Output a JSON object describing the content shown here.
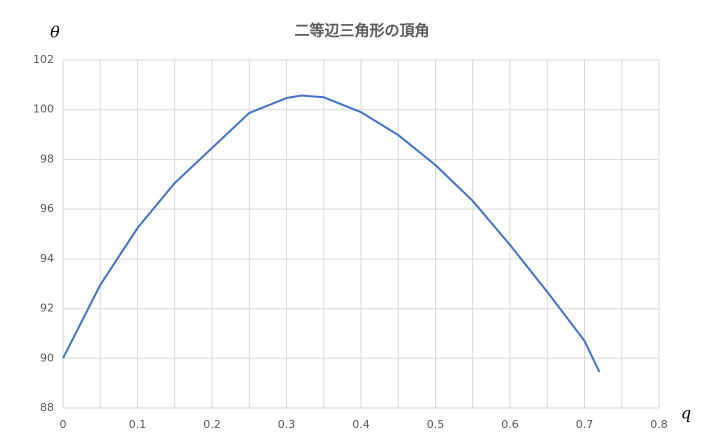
{
  "chart_data": {
    "type": "line",
    "title": "二等辺三角形の頂角",
    "x_label": "q",
    "y_label": "θ",
    "x": [
      0,
      0.05,
      0.1,
      0.15,
      0.2,
      0.25,
      0.3,
      0.32,
      0.35,
      0.4,
      0.45,
      0.5,
      0.55,
      0.6,
      0.65,
      0.7,
      0.72
    ],
    "series": [
      {
        "name": "θ",
        "color": "#4472c4",
        "values": [
          90,
          92.95,
          95.24,
          97.05,
          98.46,
          99.87,
          100.47,
          100.57,
          100.5,
          99.9,
          98.98,
          97.77,
          96.33,
          94.56,
          92.67,
          90.7,
          89.45
        ]
      }
    ],
    "xlim": [
      0,
      0.8
    ],
    "xticks": [
      0,
      0.1,
      0.2,
      0.3,
      0.4,
      0.5,
      0.6,
      0.7,
      0.8
    ],
    "xgrid": [
      0,
      0.05,
      0.1,
      0.15,
      0.2,
      0.25,
      0.3,
      0.35,
      0.4,
      0.45,
      0.5,
      0.55,
      0.6,
      0.65,
      0.7,
      0.75,
      0.8
    ],
    "ylim": [
      88,
      102
    ],
    "yticks": [
      88,
      90,
      92,
      94,
      96,
      98,
      100,
      102
    ],
    "grid": true
  }
}
